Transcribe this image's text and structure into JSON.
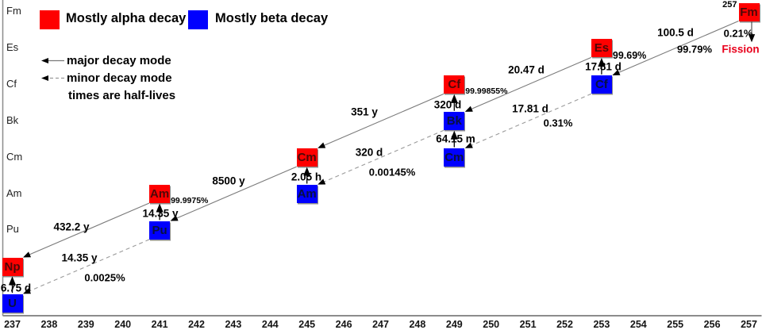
{
  "legend": {
    "alpha_label": "Mostly alpha decay",
    "beta_label": "Mostly beta decay",
    "alpha_color": "#fe0000",
    "beta_color": "#0000fe",
    "major_label": "major decay mode",
    "minor_label": "minor decay mode",
    "note": "times are half-lives"
  },
  "chart_data": {
    "type": "diagram",
    "subtype": "nuclear-decay-chain",
    "x_axis": {
      "ticks": [
        237,
        238,
        239,
        240,
        241,
        242,
        243,
        244,
        245,
        246,
        247,
        248,
        249,
        250,
        251,
        252,
        253,
        254,
        255,
        256,
        257
      ]
    },
    "y_axis": {
      "labels": [
        "Fm",
        "Es",
        "Cf",
        "Bk",
        "Cm",
        "Am",
        "Pu"
      ]
    },
    "nuclides": [
      {
        "symbol": "Fm",
        "mass": 257,
        "mode": "alpha",
        "mass_label": "257"
      },
      {
        "symbol": "Es",
        "mass": 253,
        "mode": "alpha"
      },
      {
        "symbol": "Cf",
        "mass": 253,
        "mode": "beta"
      },
      {
        "symbol": "Cf",
        "mass": 249,
        "mode": "alpha"
      },
      {
        "symbol": "Bk",
        "mass": 249,
        "mode": "beta"
      },
      {
        "symbol": "Cm",
        "mass": 249,
        "mode": "beta"
      },
      {
        "symbol": "Cm",
        "mass": 245,
        "mode": "alpha"
      },
      {
        "symbol": "Am",
        "mass": 245,
        "mode": "beta"
      },
      {
        "symbol": "Am",
        "mass": 241,
        "mode": "alpha"
      },
      {
        "symbol": "Pu",
        "mass": 241,
        "mode": "beta"
      },
      {
        "symbol": "Np",
        "mass": 237,
        "mode": "alpha"
      },
      {
        "symbol": "U",
        "mass": 237,
        "mode": "beta"
      }
    ],
    "decays": [
      {
        "from": "U-237",
        "to": "Np-237",
        "mode": "beta",
        "style": "major",
        "halflife": "6.75 d"
      },
      {
        "from": "Pu-241",
        "to": "Am-241",
        "mode": "beta",
        "style": "major",
        "halflife": "14.35 y",
        "branch": "99.9975%"
      },
      {
        "from": "Am-245",
        "to": "Cm-245",
        "mode": "beta",
        "style": "major",
        "halflife": "2.05 h"
      },
      {
        "from": "Cm-249",
        "to": "Bk-249",
        "mode": "beta",
        "style": "major",
        "halflife": "64.15 m"
      },
      {
        "from": "Bk-249",
        "to": "Cf-249",
        "mode": "beta",
        "style": "major",
        "halflife": "320 d",
        "branch": "99.99855%"
      },
      {
        "from": "Cf-253",
        "to": "Es-253",
        "mode": "beta",
        "style": "major",
        "halflife": "17.81 d",
        "branch": "99.69%"
      },
      {
        "from": "Am-241",
        "to": "Np-237",
        "mode": "alpha",
        "style": "major",
        "halflife": "432.2 y"
      },
      {
        "from": "Cm-245",
        "to": "Pu-241",
        "mode": "alpha",
        "style": "major",
        "halflife": "8500 y"
      },
      {
        "from": "Cf-249",
        "to": "Cm-245",
        "mode": "alpha",
        "style": "major",
        "halflife": "351 y"
      },
      {
        "from": "Es-253",
        "to": "Bk-249",
        "mode": "alpha",
        "style": "major",
        "halflife": "20.47 d"
      },
      {
        "from": "Fm-257",
        "to": "Cf-253",
        "mode": "alpha",
        "style": "major",
        "halflife": "100.5 d",
        "branch": "99.79%"
      },
      {
        "from": "Pu-241",
        "to": "U-237",
        "mode": "alpha",
        "style": "minor",
        "halflife": "14.35 y",
        "branch": "0.0025%"
      },
      {
        "from": "Bk-249",
        "to": "Am-245",
        "mode": "alpha",
        "style": "minor",
        "halflife": "320 d",
        "branch": "0.00145%"
      },
      {
        "from": "Cf-253",
        "to": "Cm-249",
        "mode": "alpha",
        "style": "minor",
        "halflife": "17.81 d",
        "branch": "0.31%"
      },
      {
        "from": "Fm-257",
        "to": null,
        "mode": "spontaneous-fission",
        "style": "major",
        "branch": "0.21%",
        "product_label": "Fission"
      }
    ]
  }
}
